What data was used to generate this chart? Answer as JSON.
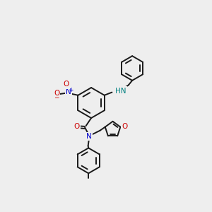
{
  "background_color": "#eeeeee",
  "bond_color": "#1a1a1a",
  "bond_width": 1.4,
  "atom_colors": {
    "N": "#0000cc",
    "O": "#cc0000",
    "H": "#008080",
    "C": "#1a1a1a"
  },
  "font_size": 7.5
}
